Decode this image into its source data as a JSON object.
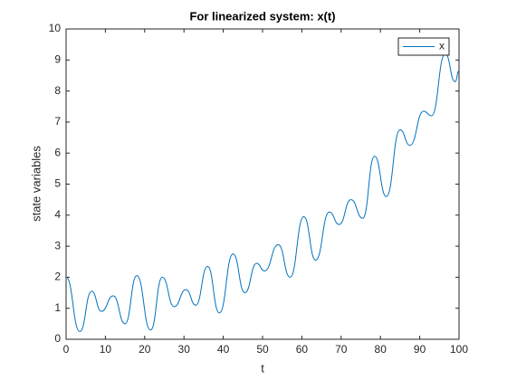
{
  "chart_data": {
    "type": "line",
    "title": "For linearized system: x(t)",
    "x_label": "t",
    "y_label": "state variables",
    "x": [
      0,
      3.5,
      6.5,
      9,
      12,
      15,
      18,
      21.5,
      24.5,
      27.5,
      30.5,
      33,
      36,
      39,
      42.5,
      45.5,
      48.5,
      50.5,
      54,
      57,
      60.5,
      63.5,
      67,
      69.5,
      72.5,
      75.5,
      78.5,
      81.5,
      85,
      87.5,
      91,
      93,
      96.5,
      99,
      100
    ],
    "series": [
      {
        "name": "x",
        "color": "#0072bd",
        "values": [
          2.0,
          0.25,
          1.55,
          0.9,
          1.4,
          0.5,
          2.05,
          0.3,
          2.0,
          1.05,
          1.6,
          1.1,
          2.35,
          0.85,
          2.75,
          1.5,
          2.45,
          2.2,
          3.05,
          2.0,
          3.95,
          2.55,
          4.1,
          3.7,
          4.5,
          3.9,
          5.9,
          4.6,
          6.75,
          6.25,
          7.35,
          7.2,
          9.2,
          8.3,
          8.65
        ]
      }
    ],
    "xlim": [
      0,
      100
    ],
    "xticks": [
      0,
      10,
      20,
      30,
      40,
      50,
      60,
      70,
      80,
      90,
      100
    ],
    "ylim": [
      0,
      10
    ],
    "yticks": [
      0,
      1,
      2,
      3,
      4,
      5,
      6,
      7,
      8,
      9,
      10
    ],
    "grid": false,
    "legend": "northeast"
  }
}
